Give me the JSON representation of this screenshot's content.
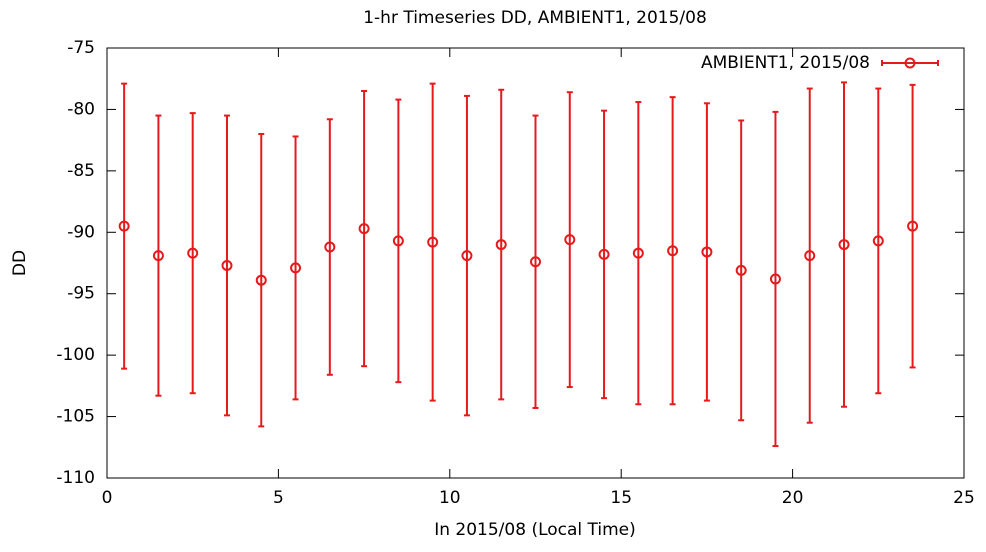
{
  "chart_data": {
    "type": "errorbar",
    "title": "1-hr Timeseries DD, AMBIENT1, 2015/08",
    "xlabel": "In 2015/08 (Local Time)",
    "ylabel": "DD",
    "xlim": [
      0,
      25
    ],
    "xticks": [
      0,
      5,
      10,
      15,
      20,
      25
    ],
    "ylim": [
      -110,
      -75
    ],
    "yticks": [
      -110,
      -105,
      -100,
      -95,
      -90,
      -85,
      -80,
      -75
    ],
    "grid": false,
    "legend": "top-right",
    "series": [
      {
        "name": "AMBIENT1, 2015/08",
        "color": "#e41a1c",
        "x": [
          0.5,
          1.5,
          2.5,
          3.5,
          4.5,
          5.5,
          6.5,
          7.5,
          8.5,
          9.5,
          10.5,
          11.5,
          12.5,
          13.5,
          14.5,
          15.5,
          16.5,
          17.5,
          18.5,
          19.5,
          20.5,
          21.5,
          22.5,
          23.5
        ],
        "values": [
          -89.5,
          -91.9,
          -91.7,
          -92.7,
          -93.9,
          -92.9,
          -91.2,
          -89.7,
          -90.7,
          -90.8,
          -91.9,
          -91.0,
          -92.4,
          -90.6,
          -91.8,
          -91.7,
          -91.5,
          -91.6,
          -93.1,
          -93.8,
          -91.9,
          -91.0,
          -90.7,
          -89.5
        ],
        "errors": [
          11.6,
          11.4,
          11.4,
          12.2,
          11.9,
          10.7,
          10.4,
          11.2,
          11.5,
          12.9,
          13.0,
          12.6,
          11.9,
          12.0,
          11.7,
          12.3,
          12.5,
          12.1,
          12.2,
          13.6,
          13.6,
          13.2,
          12.4,
          11.5
        ]
      }
    ]
  }
}
